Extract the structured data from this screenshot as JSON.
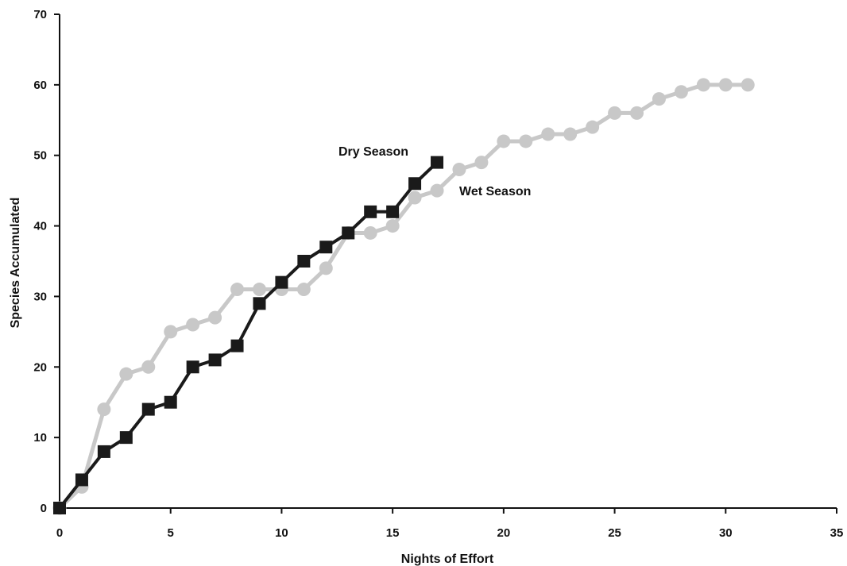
{
  "chart_data": {
    "type": "line",
    "title": "",
    "xlabel": "Nights of Effort",
    "ylabel": "Species Accumulated",
    "xlim": [
      0,
      35
    ],
    "ylim": [
      0,
      70
    ],
    "xticks": [
      "0",
      "5",
      "10",
      "15",
      "20",
      "25",
      "30",
      "35"
    ],
    "yticks": [
      "0",
      "10",
      "20",
      "30",
      "40",
      "50",
      "60",
      "70"
    ],
    "grid": false,
    "legend": "none",
    "series": [
      {
        "name": "Wet Season",
        "color": "#c8c8c8",
        "marker": "circle",
        "x": [
          0,
          1,
          2,
          3,
          4,
          5,
          6,
          7,
          8,
          9,
          10,
          11,
          12,
          13,
          14,
          15,
          16,
          17,
          18,
          19,
          20,
          21,
          22,
          23,
          24,
          25,
          26,
          27,
          28,
          29,
          30,
          31
        ],
        "y": [
          0,
          3,
          14,
          19,
          20,
          25,
          26,
          27,
          31,
          31,
          31,
          31,
          34,
          39,
          39,
          40,
          44,
          45,
          48,
          49,
          52,
          52,
          53,
          53,
          54,
          56,
          56,
          58,
          59,
          60,
          60,
          60
        ]
      },
      {
        "name": "Dry Season",
        "color": "#1a1a1a",
        "marker": "square",
        "x": [
          0,
          1,
          2,
          3,
          4,
          5,
          6,
          7,
          8,
          9,
          10,
          11,
          12,
          13,
          14,
          15,
          16,
          17
        ],
        "y": [
          0,
          4,
          8,
          10,
          14,
          15,
          20,
          21,
          23,
          29,
          32,
          35,
          37,
          39,
          42,
          42,
          46,
          49
        ]
      }
    ]
  }
}
